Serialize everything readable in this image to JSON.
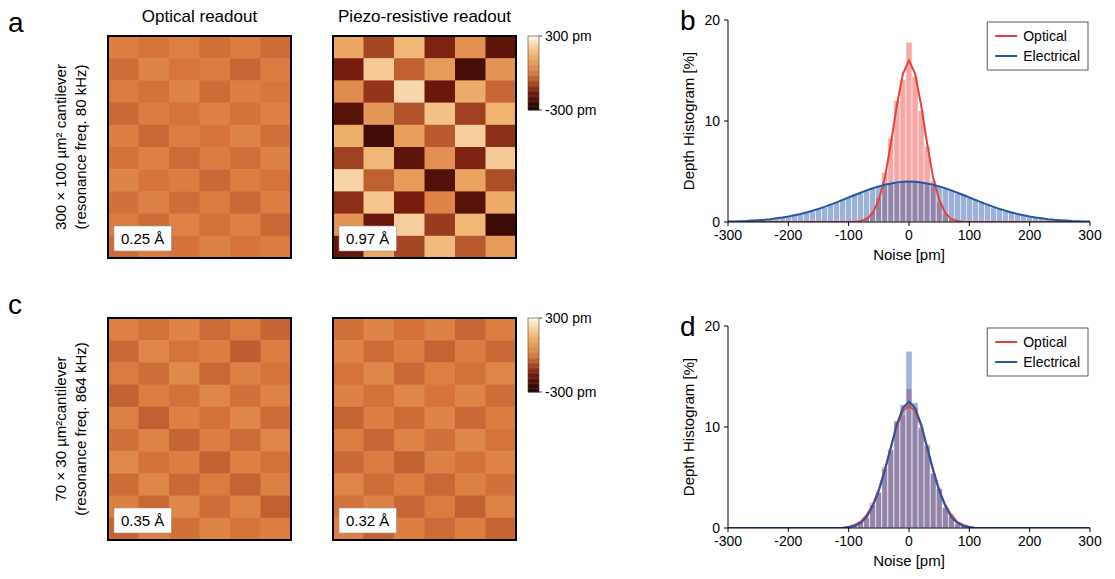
{
  "chart_data": [
    {
      "type": "heatmap",
      "panel": "a",
      "row_label": [
        "300 × 100 µm² cantilever",
        "(resonance freq. 80 kHz)"
      ],
      "column_titles": [
        "Optical readout",
        "Piezo-resistive readout"
      ],
      "color_range": [
        -300,
        300
      ],
      "colorbar_ticks": [
        {
          "value": 300,
          "label": "300 pm"
        },
        {
          "value": -300,
          "label": "-300 pm"
        }
      ],
      "images": [
        {
          "label": "0.25 Å",
          "cells": [
            [
              12,
              -8,
              20,
              -15,
              5,
              -22
            ],
            [
              -18,
              25,
              -5,
              10,
              -30,
              8
            ],
            [
              6,
              -12,
              30,
              -20,
              15,
              -4
            ],
            [
              -25,
              10,
              -8,
              22,
              -10,
              18
            ],
            [
              15,
              -28,
              12,
              -6,
              26,
              -14
            ],
            [
              -10,
              18,
              -22,
              8,
              -16,
              24
            ],
            [
              28,
              -6,
              10,
              -26,
              12,
              -8
            ],
            [
              -14,
              22,
              -18,
              4,
              -24,
              16
            ],
            [
              8,
              -20,
              26,
              -12,
              18,
              -28
            ],
            [
              -22,
              14,
              -10,
              20,
              -6,
              10
            ]
          ]
        },
        {
          "label": "0.97 Å",
          "cells": [
            [
              120,
              -80,
              160,
              -140,
              60,
              -190
            ],
            [
              -150,
              200,
              -40,
              90,
              -220,
              70
            ],
            [
              50,
              -110,
              230,
              -170,
              130,
              -30
            ],
            [
              -200,
              80,
              -60,
              180,
              -90,
              150
            ],
            [
              140,
              -230,
              100,
              -50,
              210,
              -120
            ],
            [
              -90,
              160,
              -190,
              60,
              -140,
              200
            ],
            [
              220,
              -40,
              90,
              -210,
              110,
              -70
            ],
            [
              -120,
              190,
              -150,
              30,
              -200,
              130
            ],
            [
              70,
              -170,
              210,
              -100,
              160,
              -240
            ],
            [
              -180,
              120,
              -80,
              170,
              -50,
              90
            ]
          ]
        }
      ]
    },
    {
      "type": "histogram",
      "panel": "b",
      "xlabel": "Noise [pm]",
      "ylabel": "Depth Histogram [%]",
      "xlim": [
        -300,
        300
      ],
      "xticks": [
        -300,
        -200,
        -100,
        0,
        100,
        200,
        300
      ],
      "ylim": [
        0,
        20
      ],
      "yticks": [
        0,
        10,
        20
      ],
      "grid": false,
      "legend": "upper right",
      "bins": [
        -305,
        -295,
        -285,
        -275,
        -265,
        -255,
        -245,
        -235,
        -225,
        -215,
        -205,
        -195,
        -185,
        -175,
        -165,
        -155,
        -145,
        -135,
        -125,
        -115,
        -105,
        -95,
        -85,
        -75,
        -65,
        -55,
        -45,
        -35,
        -25,
        -15,
        -5,
        5,
        15,
        25,
        35,
        45,
        55,
        65,
        75,
        85,
        95,
        105,
        115,
        125,
        135,
        145,
        155,
        165,
        175,
        185,
        195,
        205,
        215,
        225,
        235,
        245,
        255,
        265,
        275,
        285,
        295,
        305
      ],
      "fit_x": [
        -300,
        -290,
        -280,
        -270,
        -260,
        -250,
        -240,
        -230,
        -220,
        -210,
        -200,
        -190,
        -180,
        -170,
        -160,
        -150,
        -140,
        -130,
        -120,
        -110,
        -100,
        -90,
        -80,
        -70,
        -60,
        -50,
        -40,
        -30,
        -20,
        -10,
        0,
        10,
        20,
        30,
        40,
        50,
        60,
        70,
        80,
        90,
        100,
        110,
        120,
        130,
        140,
        150,
        160,
        170,
        180,
        190,
        200,
        210,
        220,
        230,
        240,
        250,
        260,
        270,
        280,
        290,
        300
      ],
      "series": [
        {
          "name": "Optical",
          "color": "#e8413c",
          "values": [
            0,
            0,
            0,
            0,
            0,
            0,
            0,
            0,
            0,
            0,
            0,
            0,
            0,
            0,
            0,
            0,
            0,
            0,
            0,
            0,
            0,
            0,
            0.1,
            0.4,
            1.0,
            2.4,
            4.9,
            8.3,
            12.0,
            14.1,
            17.8,
            14.4,
            11.0,
            7.5,
            4.1,
            2.0,
            0.8,
            0.3,
            0.1,
            0,
            0,
            0,
            0,
            0,
            0,
            0,
            0,
            0,
            0,
            0,
            0,
            0,
            0,
            0,
            0,
            0,
            0,
            0,
            0,
            0,
            0
          ],
          "fit": [
            0,
            0,
            0,
            0,
            0,
            0,
            0,
            0,
            0,
            0,
            0,
            0,
            0,
            0,
            0,
            0,
            0,
            0,
            0,
            0,
            0,
            0,
            0.1,
            0.3,
            0.9,
            2.2,
            4.4,
            7.8,
            11.6,
            14.7,
            16.0,
            14.7,
            11.6,
            7.8,
            4.4,
            2.2,
            0.9,
            0.3,
            0.1,
            0,
            0,
            0,
            0,
            0,
            0,
            0,
            0,
            0,
            0,
            0,
            0,
            0,
            0,
            0,
            0,
            0,
            0,
            0,
            0,
            0,
            0
          ]
        },
        {
          "name": "Electrical",
          "color": "#2456a6",
          "values": [
            0.05,
            0.04,
            0.1,
            0.12,
            0.11,
            0.2,
            0.25,
            0.3,
            0.33,
            0.48,
            0.5,
            0.7,
            0.75,
            0.98,
            1.05,
            1.35,
            1.45,
            1.8,
            1.9,
            2.25,
            2.38,
            2.75,
            2.85,
            3.2,
            3.3,
            3.6,
            3.65,
            3.9,
            3.85,
            4.05,
            3.95,
            4.02,
            3.88,
            3.85,
            3.62,
            3.58,
            3.28,
            3.18,
            2.85,
            2.72,
            2.38,
            2.25,
            1.9,
            1.78,
            1.45,
            1.35,
            1.05,
            0.98,
            0.75,
            0.7,
            0.5,
            0.47,
            0.33,
            0.3,
            0.2,
            0.19,
            0.12,
            0.11,
            0.07,
            0.06,
            0.03
          ],
          "fit": [
            0.04,
            0.06,
            0.08,
            0.1,
            0.14,
            0.18,
            0.22,
            0.28,
            0.36,
            0.44,
            0.54,
            0.66,
            0.79,
            0.94,
            1.11,
            1.3,
            1.5,
            1.72,
            1.95,
            2.19,
            2.43,
            2.67,
            2.9,
            3.13,
            3.34,
            3.53,
            3.69,
            3.82,
            3.92,
            3.98,
            4.0,
            3.98,
            3.92,
            3.82,
            3.69,
            3.53,
            3.34,
            3.13,
            2.9,
            2.67,
            2.43,
            2.19,
            1.95,
            1.72,
            1.5,
            1.3,
            1.11,
            0.94,
            0.79,
            0.66,
            0.54,
            0.44,
            0.36,
            0.28,
            0.22,
            0.18,
            0.14,
            0.1,
            0.08,
            0.06,
            0.04
          ]
        }
      ]
    },
    {
      "type": "heatmap",
      "panel": "c",
      "row_label": [
        "70 × 30 µm²cantilever",
        "(resonance freq. 864 kHz)"
      ],
      "color_range": [
        -300,
        300
      ],
      "colorbar_ticks": [
        {
          "value": 300,
          "label": "300 pm"
        },
        {
          "value": -300,
          "label": "-300 pm"
        }
      ],
      "images": [
        {
          "label": "0.35 Å",
          "cells": [
            [
              18,
              -12,
              30,
              -22,
              8,
              -32
            ],
            [
              -26,
              35,
              -8,
              14,
              -42,
              12
            ],
            [
              9,
              -18,
              42,
              -28,
              22,
              -6
            ],
            [
              -36,
              14,
              -12,
              32,
              -14,
              26
            ],
            [
              22,
              -40,
              18,
              -9,
              38,
              -20
            ],
            [
              -14,
              26,
              -32,
              12,
              -22,
              34
            ],
            [
              40,
              -9,
              14,
              -36,
              18,
              -12
            ],
            [
              -20,
              32,
              -26,
              6,
              -34,
              22
            ],
            [
              12,
              -28,
              36,
              -18,
              26,
              -40
            ],
            [
              -32,
              20,
              -14,
              28,
              -8,
              14
            ]
          ]
        },
        {
          "label": "0.32 Å",
          "cells": [
            [
              -16,
              28,
              -10,
              24,
              -30,
              12
            ],
            [
              30,
              -20,
              14,
              -34,
              10,
              -24
            ],
            [
              -8,
              36,
              -26,
              18,
              -12,
              32
            ],
            [
              24,
              -12,
              38,
              -6,
              28,
              -18
            ],
            [
              -34,
              16,
              -20,
              30,
              -26,
              10
            ],
            [
              12,
              -30,
              26,
              -14,
              36,
              -8
            ],
            [
              -26,
              8,
              -36,
              22,
              -10,
              30
            ],
            [
              34,
              -18,
              12,
              -28,
              20,
              -14
            ],
            [
              -10,
              24,
              -30,
              8,
              -38,
              26
            ],
            [
              20,
              -36,
              16,
              -22,
              14,
              -32
            ]
          ]
        }
      ]
    },
    {
      "type": "histogram",
      "panel": "d",
      "xlabel": "Noise [pm]",
      "ylabel": "Depth Histogram [%]",
      "xlim": [
        -300,
        300
      ],
      "xticks": [
        -300,
        -200,
        -100,
        0,
        100,
        200,
        300
      ],
      "ylim": [
        0,
        20
      ],
      "yticks": [
        0,
        10,
        20
      ],
      "grid": false,
      "legend": "upper right",
      "bins": [
        -305,
        -295,
        -285,
        -275,
        -265,
        -255,
        -245,
        -235,
        -225,
        -215,
        -205,
        -195,
        -185,
        -175,
        -165,
        -155,
        -145,
        -135,
        -125,
        -115,
        -105,
        -95,
        -85,
        -75,
        -65,
        -55,
        -45,
        -35,
        -25,
        -15,
        -5,
        5,
        15,
        25,
        35,
        45,
        55,
        65,
        75,
        85,
        95,
        105,
        115,
        125,
        135,
        145,
        155,
        165,
        175,
        185,
        195,
        205,
        215,
        225,
        235,
        245,
        255,
        265,
        275,
        285,
        295,
        305
      ],
      "fit_x": [
        -300,
        -290,
        -280,
        -270,
        -260,
        -250,
        -240,
        -230,
        -220,
        -210,
        -200,
        -190,
        -180,
        -170,
        -160,
        -150,
        -140,
        -130,
        -120,
        -110,
        -100,
        -90,
        -80,
        -70,
        -60,
        -50,
        -40,
        -30,
        -20,
        -10,
        0,
        10,
        20,
        30,
        40,
        50,
        60,
        70,
        80,
        90,
        100,
        110,
        120,
        130,
        140,
        150,
        160,
        170,
        180,
        190,
        200,
        210,
        220,
        230,
        240,
        250,
        260,
        270,
        280,
        290,
        300
      ],
      "series": [
        {
          "name": "Optical",
          "color": "#e8413c",
          "values": [
            0,
            0,
            0,
            0,
            0,
            0,
            0,
            0,
            0,
            0,
            0,
            0,
            0,
            0,
            0,
            0,
            0,
            0,
            0,
            0,
            0.1,
            0.4,
            0.7,
            1.2,
            2.5,
            3.6,
            6.1,
            7.7,
            10.5,
            11.2,
            13.8,
            11.9,
            9.8,
            8.3,
            5.5,
            4.0,
            2.1,
            1.4,
            0.5,
            0.3,
            0.1,
            0,
            0,
            0,
            0,
            0,
            0,
            0,
            0,
            0,
            0,
            0,
            0,
            0,
            0,
            0,
            0,
            0,
            0,
            0,
            0
          ],
          "fit": [
            0,
            0,
            0,
            0,
            0,
            0,
            0,
            0,
            0,
            0,
            0,
            0,
            0,
            0,
            0,
            0,
            0,
            0,
            0,
            0,
            0.1,
            0.3,
            0.6,
            1.3,
            2.3,
            3.8,
            5.8,
            8.0,
            10.1,
            11.6,
            12.1,
            11.6,
            10.1,
            8.0,
            5.8,
            3.8,
            2.3,
            1.3,
            0.6,
            0.3,
            0.1,
            0,
            0,
            0,
            0,
            0,
            0,
            0,
            0,
            0,
            0,
            0,
            0,
            0,
            0,
            0,
            0,
            0,
            0,
            0,
            0
          ]
        },
        {
          "name": "Electrical",
          "color": "#2456a6",
          "values": [
            0,
            0,
            0,
            0,
            0,
            0,
            0,
            0,
            0,
            0,
            0,
            0,
            0,
            0,
            0,
            0,
            0,
            0,
            0,
            0,
            0.1,
            0.3,
            0.6,
            1.0,
            2.3,
            3.5,
            5.9,
            7.8,
            10.6,
            12.2,
            17.5,
            12.4,
            10.0,
            8.2,
            5.4,
            3.9,
            2.0,
            1.2,
            0.4,
            0.2,
            0.1,
            0,
            0,
            0,
            0,
            0,
            0,
            0,
            0,
            0,
            0,
            0,
            0,
            0,
            0,
            0,
            0,
            0,
            0,
            0,
            0
          ],
          "fit": [
            0,
            0,
            0,
            0,
            0,
            0,
            0,
            0,
            0,
            0,
            0,
            0,
            0,
            0,
            0,
            0,
            0,
            0,
            0,
            0,
            0.1,
            0.2,
            0.5,
            1.1,
            2.2,
            3.7,
            5.7,
            8.0,
            10.3,
            11.9,
            12.5,
            11.9,
            10.3,
            8.0,
            5.7,
            3.7,
            2.2,
            1.1,
            0.5,
            0.2,
            0.1,
            0,
            0,
            0,
            0,
            0,
            0,
            0,
            0,
            0,
            0,
            0,
            0,
            0,
            0,
            0,
            0,
            0,
            0,
            0,
            0
          ]
        }
      ]
    }
  ]
}
